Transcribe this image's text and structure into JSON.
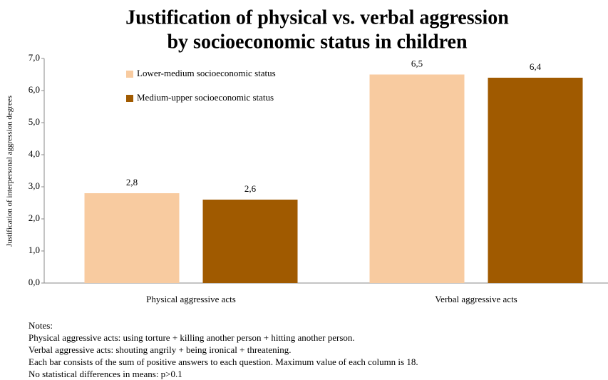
{
  "chart_data": {
    "type": "bar",
    "title": "Justification of physical vs. verbal aggression",
    "subtitle": "by socioeconomic status in children",
    "y_label": "Justification of interpersonal aggression degrees",
    "categories": [
      "Physical aggressive acts",
      "Verbal aggressive acts"
    ],
    "series": [
      {
        "name": "Lower-medium  socioeconomic  status",
        "color": "#f8cba0",
        "values": [
          2.8,
          6.5
        ],
        "value_labels": [
          "2,8",
          "6,5"
        ]
      },
      {
        "name": "Medium-upper  socioeconomic  status",
        "color": "#a05a00",
        "values": [
          2.6,
          6.4
        ],
        "value_labels": [
          "2,6",
          "6,4"
        ]
      }
    ],
    "ylim": [
      0,
      7
    ],
    "yticks": [
      {
        "value": 0,
        "label": "0,0"
      },
      {
        "value": 1,
        "label": "1,0"
      },
      {
        "value": 2,
        "label": "2,0"
      },
      {
        "value": 3,
        "label": "3,0"
      },
      {
        "value": 4,
        "label": "4,0"
      },
      {
        "value": 5,
        "label": "5,0"
      },
      {
        "value": 6,
        "label": "6,0"
      },
      {
        "value": 7,
        "label": "7,0"
      }
    ],
    "grid": false,
    "legend": "upper left",
    "notes": [
      "Notes:",
      "Physical aggressive acts: using torture + killing another person + hitting another person.",
      "Verbal aggressive acts: shouting angrily + being ironical + threatening.",
      "Each bar consists of the sum of positive answers to each question. Maximum value of each column is 18.",
      "No statistical differences in means: p>0.1"
    ]
  }
}
